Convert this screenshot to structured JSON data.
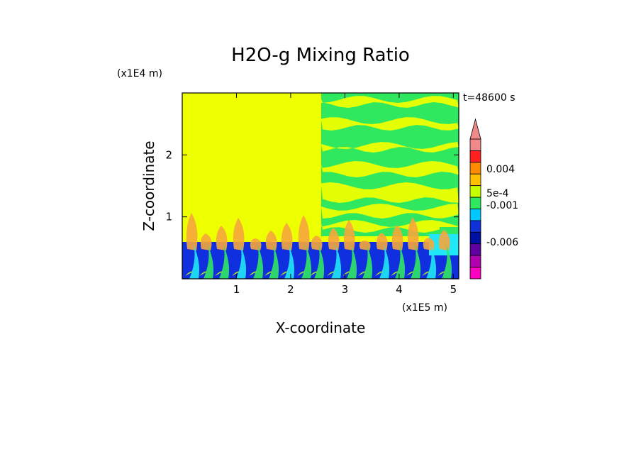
{
  "chart_data": {
    "type": "heatmap",
    "title": "H2O-g Mixing Ratio",
    "xlabel": "X-coordinate",
    "ylabel": "Z-coordinate",
    "x_unit": "(x1E5 m)",
    "y_unit": "(x1E4 m)",
    "time_label": "t=48600 s",
    "x_ticks": [
      "1",
      "2",
      "3",
      "4",
      "5"
    ],
    "y_ticks": [
      "1",
      "2"
    ],
    "xlim": [
      0,
      5.1
    ],
    "ylim": [
      0,
      3.0
    ],
    "colorbar": {
      "labels": [
        "0.004",
        "5e-4",
        "-0.001",
        "-0.006"
      ],
      "colors": [
        "#f08a8a",
        "#ff2020",
        "#ff8c00",
        "#ffc000",
        "#c8ff00",
        "#30e860",
        "#00c8ff",
        "#1030d8",
        "#0010a0",
        "#6000a0",
        "#b000b0",
        "#ff00c0"
      ],
      "extend_top": true
    },
    "field_colors": {
      "yellow": "#eeff00",
      "green": "#30e860",
      "orange": "#f6a63c",
      "blue": "#1030e0",
      "cyan": "#20e8f8",
      "yellowgreen": "#c8ff00"
    }
  }
}
